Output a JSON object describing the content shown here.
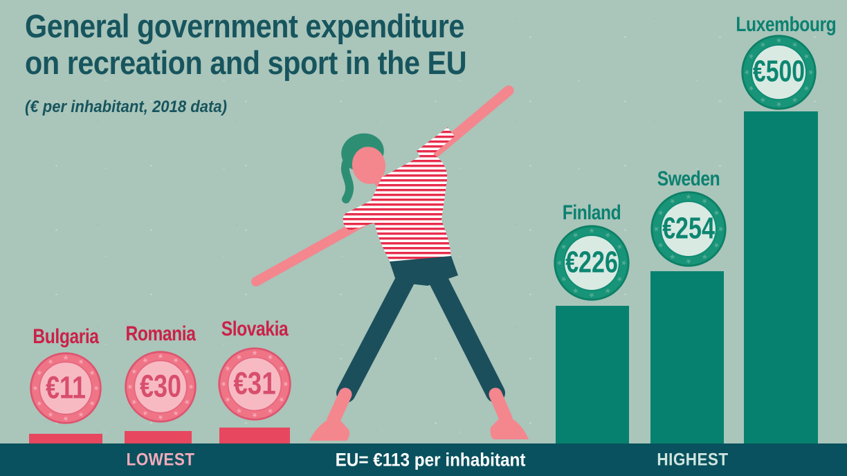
{
  "title": {
    "line1": "General government expenditure",
    "line2": "on recreation and sport in the EU"
  },
  "subtitle": "(€ per inhabitant, 2018 data)",
  "footer": {
    "lowest_label": "LOWEST",
    "eu_average_label": "EU= €113 per inhabitant",
    "highest_label": "HIGHEST"
  },
  "chart_data": {
    "type": "bar",
    "title": "General government expenditure on recreation and sport in the EU",
    "unit": "€ per inhabitant",
    "year": "2018",
    "eu_average": 113,
    "groups": {
      "lowest": [
        {
          "country": "Bulgaria",
          "value": 11,
          "value_label": "€11"
        },
        {
          "country": "Romania",
          "value": 30,
          "value_label": "€30"
        },
        {
          "country": "Slovakia",
          "value": 31,
          "value_label": "€31"
        }
      ],
      "highest": [
        {
          "country": "Finland",
          "value": 226,
          "value_label": "€226"
        },
        {
          "country": "Sweden",
          "value": 254,
          "value_label": "€254"
        },
        {
          "country": "Luxembourg",
          "value": 500,
          "value_label": "€500"
        }
      ]
    },
    "legend": "none",
    "annotations": [
      "Lowest countries shown as pink euro coins on small red pedestals",
      "Highest countries shown as teal euro coins on tall teal bars",
      "Illustration of a woman exercising between the two groups"
    ]
  },
  "icons": {
    "coin_star": "star-icon",
    "woman": "exercising-woman-illustration"
  },
  "colors": {
    "background": "#aac5ba",
    "title_teal": "#17555e",
    "label_red": "#cb2148",
    "label_teal": "#0b8170",
    "coin_pink_ring": "#ef7486",
    "coin_pink_inner": "#f7bac3",
    "coin_pink_value": "#d84e6d",
    "pedestal_red": "#e7475f",
    "coin_teal_ring": "#189478",
    "coin_teal_inner": "#d9eae3",
    "coin_teal_value": "#0d8671",
    "bar_teal": "#07816f",
    "footer_bg": "#09515e",
    "footer_lowest_text": "#f3abbb",
    "footer_highest_text": "#cfe5de",
    "footer_eu_text": "#ffffff",
    "skin": "#f4868e",
    "hair": "#2e8e73",
    "leggings": "#1c4f5c",
    "shirt_stripe_red": "#e82e4d"
  }
}
